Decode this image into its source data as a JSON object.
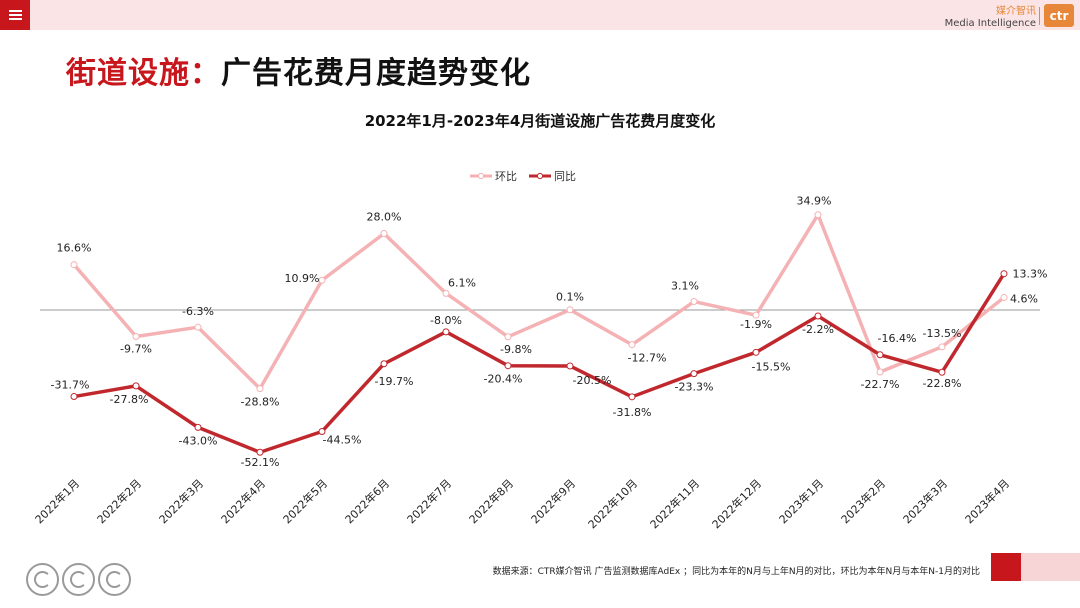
{
  "header": {
    "menu_icon": "hamburger-icon",
    "brand_cn": "媒介智讯",
    "brand_en": "Media Intelligence",
    "logo_text": "ctr",
    "accent_color": "#c8161d",
    "brand_color": "#e6873a"
  },
  "page": {
    "title_red": "街道设施：",
    "title_dark": "广告花费月度趋势变化"
  },
  "chart_data": {
    "type": "line",
    "title": "2022年1月-2023年4月街道设施广告花费月度变化",
    "categories": [
      "2022年1月",
      "2022年2月",
      "2022年3月",
      "2022年4月",
      "2022年5月",
      "2022年6月",
      "2022年7月",
      "2022年8月",
      "2022年9月",
      "2022年10月",
      "2022年11月",
      "2022年12月",
      "2023年1月",
      "2023年2月",
      "2023年3月",
      "2023年4月"
    ],
    "series": [
      {
        "name": "环比",
        "color": "#f4b2b4",
        "values": [
          16.6,
          -9.7,
          -6.3,
          -28.8,
          10.9,
          28.0,
          6.1,
          -9.8,
          0.1,
          -12.7,
          3.1,
          -1.9,
          34.9,
          -22.7,
          -13.5,
          4.6
        ],
        "labels": [
          "16.6%",
          "-9.7%",
          "-6.3%",
          "-28.8%",
          "10.9%",
          "28.0%",
          "6.1%",
          "-9.8%",
          "0.1%",
          "-12.7%",
          "3.1%",
          "-1.9%",
          "34.9%",
          "-22.7%",
          "-13.5%",
          "4.6%"
        ]
      },
      {
        "name": "同比",
        "color": "#c0282d",
        "values": [
          -31.7,
          -27.8,
          -43.0,
          -52.1,
          -44.5,
          -19.7,
          -8.0,
          -20.4,
          -20.5,
          -31.8,
          -23.3,
          -15.5,
          -2.2,
          -16.4,
          -22.8,
          13.3
        ],
        "labels": [
          "-31.7%",
          "-27.8%",
          "-43.0%",
          "-52.1%",
          "-44.5%",
          "-19.7%",
          "-8.0%",
          "-20.4%",
          "-20.5%",
          "-31.8%",
          "-23.3%",
          "-15.5%",
          "-2.2%",
          "-16.4%",
          "-22.8%",
          "13.3%"
        ]
      }
    ],
    "legend_position": "top-center",
    "grid": false,
    "zero_line": true
  },
  "footer": {
    "source": "数据来源：CTR媒介智讯 广告监测数据库AdEx ；同比为本年的N月与上年N月的对比，环比为本年N月与本年N-1月的对比",
    "cert_icons": [
      "sgs-cert-icon",
      "sgs-cert-icon",
      "sgs-cert-icon"
    ]
  }
}
